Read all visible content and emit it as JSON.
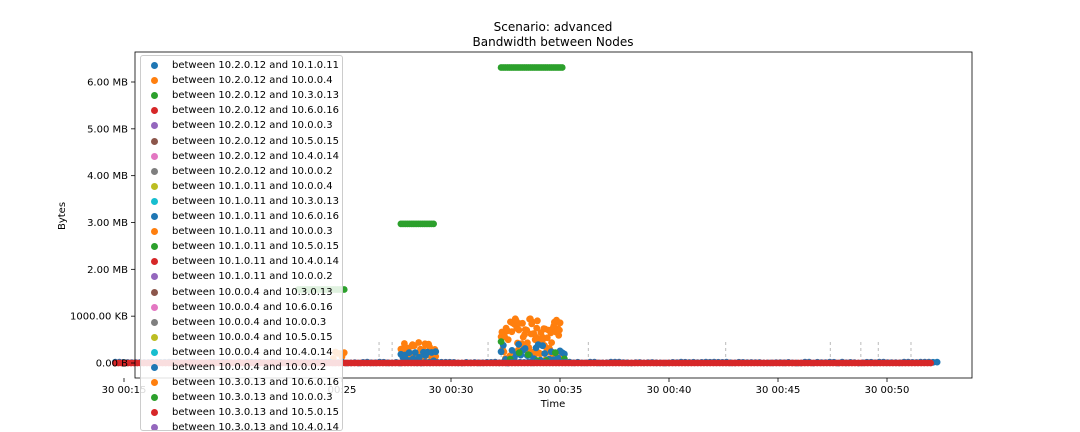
{
  "chart_data": {
    "type": "scatter",
    "title": "Scenario: advanced",
    "subtitle": "Bandwidth between Nodes",
    "xlabel": "Time",
    "ylabel": "Bytes",
    "xlim_seconds_after_00_20": [
      -5.0,
      22.9
    ],
    "ylim_MB": [
      -0.3,
      6.6
    ],
    "x_ticks": [
      "30 00:15",
      "00:25",
      "30 00:30",
      "30 00:35",
      "30 00:40",
      "30 00:45",
      "30 00:50"
    ],
    "x_tick_minutes": [
      15,
      25,
      30,
      35,
      40,
      45,
      50
    ],
    "y_ticks": [
      "0.00 B",
      "1000.00 KB",
      "2.00 MB",
      "3.00 MB",
      "4.00 MB",
      "5.00 MB",
      "6.00 MB"
    ],
    "y_tick_values_MB": [
      0,
      1.0,
      2.0,
      3.0,
      4.0,
      5.0,
      6.0
    ],
    "legend_position": "upper left",
    "series": [
      {
        "name": "between 10.2.0.12 and 10.1.0.11",
        "color": "#1f77b4"
      },
      {
        "name": "between 10.2.0.12 and 10.0.0.4",
        "color": "#ff7f0e"
      },
      {
        "name": "between 10.2.0.12 and 10.3.0.13",
        "color": "#2ca02c"
      },
      {
        "name": "between 10.2.0.12 and 10.6.0.16",
        "color": "#d62728"
      },
      {
        "name": "between 10.2.0.12 and 10.0.0.3",
        "color": "#9467bd"
      },
      {
        "name": "between 10.2.0.12 and 10.5.0.15",
        "color": "#8c564b"
      },
      {
        "name": "between 10.2.0.12 and 10.4.0.14",
        "color": "#e377c2"
      },
      {
        "name": "between 10.2.0.12 and 10.0.0.2",
        "color": "#7f7f7f"
      },
      {
        "name": "between 10.1.0.11 and 10.0.0.4",
        "color": "#bcbd22"
      },
      {
        "name": "between 10.1.0.11 and 10.3.0.13",
        "color": "#17becf"
      },
      {
        "name": "between 10.1.0.11 and 10.6.0.16",
        "color": "#1f77b4"
      },
      {
        "name": "between 10.1.0.11 and 10.0.0.3",
        "color": "#ff7f0e"
      },
      {
        "name": "between 10.1.0.11 and 10.5.0.15",
        "color": "#2ca02c"
      },
      {
        "name": "between 10.1.0.11 and 10.4.0.14",
        "color": "#d62728"
      },
      {
        "name": "between 10.1.0.11 and 10.0.0.2",
        "color": "#9467bd"
      },
      {
        "name": "between 10.0.0.4 and 10.3.0.13",
        "color": "#8c564b"
      },
      {
        "name": "between 10.0.0.4 and 10.6.0.16",
        "color": "#e377c2"
      },
      {
        "name": "between 10.0.0.4 and 10.0.0.3",
        "color": "#7f7f7f"
      },
      {
        "name": "between 10.0.0.4 and 10.5.0.15",
        "color": "#bcbd22"
      },
      {
        "name": "between 10.0.0.4 and 10.4.0.14",
        "color": "#17becf"
      },
      {
        "name": "between 10.0.0.4 and 10.0.0.2",
        "color": "#1f77b4"
      },
      {
        "name": "between 10.3.0.13 and 10.6.0.16",
        "color": "#ff7f0e"
      },
      {
        "name": "between 10.3.0.13 and 10.0.0.3",
        "color": "#2ca02c"
      },
      {
        "name": "between 10.3.0.13 and 10.5.0.15",
        "color": "#d62728"
      },
      {
        "name": "between 10.3.0.13 and 10.4.0.14",
        "color": "#9467bd"
      }
    ],
    "clusters": [
      {
        "color": "#2ca02c",
        "x": [
          23.0,
          25.1
        ],
        "y": [
          1.57,
          1.57
        ],
        "n": 22
      },
      {
        "color": "#2ca02c",
        "x": [
          27.7,
          29.2
        ],
        "y": [
          2.97,
          2.97
        ],
        "n": 16
      },
      {
        "color": "#2ca02c",
        "x": [
          32.3,
          35.1
        ],
        "y": [
          6.31,
          6.31
        ],
        "n": 30
      },
      {
        "color": "#ff7f0e",
        "x": [
          27.7,
          29.3
        ],
        "y": [
          0.05,
          0.44
        ],
        "n": 40
      },
      {
        "color": "#1f77b4",
        "x": [
          27.7,
          29.3
        ],
        "y": [
          0.0,
          0.25
        ],
        "n": 18
      },
      {
        "color": "#ff7f0e",
        "x": [
          32.3,
          35.2
        ],
        "y": [
          0.05,
          0.95
        ],
        "n": 90
      },
      {
        "color": "#1f77b4",
        "x": [
          32.3,
          35.2
        ],
        "y": [
          0.0,
          0.4
        ],
        "n": 30
      },
      {
        "color": "#2ca02c",
        "x": [
          32.3,
          35.2
        ],
        "y": [
          0.05,
          0.46
        ],
        "n": 8
      },
      {
        "color": "#ff7f0e",
        "x": [
          24.6,
          25.1
        ],
        "y": [
          0.05,
          0.25
        ],
        "n": 6
      },
      {
        "color": "#1f77b4",
        "x": [
          14.6,
          52.3
        ],
        "y": [
          0.0,
          0.02
        ],
        "n": 200
      },
      {
        "color": "#d62728",
        "x": [
          14.6,
          52.0
        ],
        "y": [
          0.0,
          0.0
        ],
        "n": 260
      }
    ],
    "vlines_minutes": [
      26.7,
      27.3,
      31.7,
      32.3,
      36.3,
      42.6,
      47.4,
      48.8,
      49.6,
      51.1
    ]
  }
}
